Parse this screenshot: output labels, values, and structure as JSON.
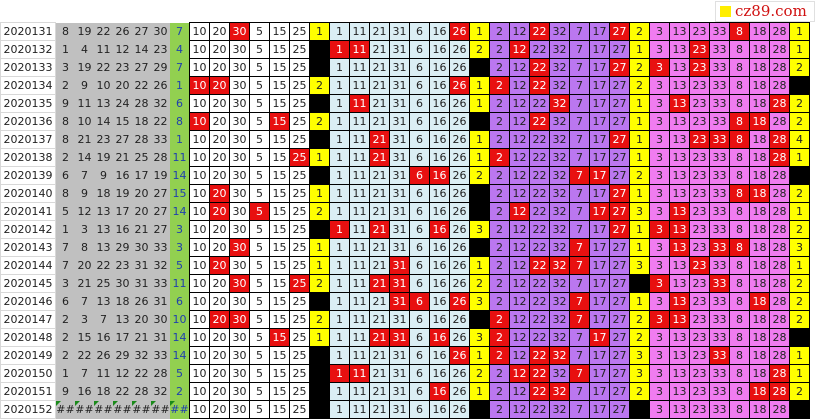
{
  "logo": {
    "text": "cz89.com",
    "color": "#d01010"
  },
  "colors": {
    "hit": "#e81010",
    "indicator": "#ffff00",
    "zero": "#000000",
    "blue_col": "#92d050",
    "draw_col": "#c0c0c0"
  },
  "groups": [
    {
      "numbers": [
        10,
        20,
        30,
        5,
        15,
        25
      ]
    },
    {
      "numbers": [
        1,
        11,
        21,
        31,
        6,
        16,
        26
      ]
    },
    {
      "numbers": [
        2,
        12,
        22,
        32,
        7,
        17,
        27
      ]
    },
    {
      "numbers": [
        3,
        13,
        23,
        33,
        8,
        18,
        28
      ]
    }
  ],
  "rows": [
    {
      "issue": "2020131",
      "reds": [
        8,
        19,
        22,
        26,
        27,
        30
      ],
      "blue": 7,
      "counts": [
        1,
        1,
        2,
        1
      ]
    },
    {
      "issue": "2020132",
      "reds": [
        1,
        4,
        11,
        12,
        14,
        23
      ],
      "blue": 4,
      "counts": [
        0,
        2,
        1,
        1
      ]
    },
    {
      "issue": "2020133",
      "reds": [
        3,
        19,
        22,
        23,
        27,
        29
      ],
      "blue": 7,
      "counts": [
        0,
        0,
        2,
        2
      ]
    },
    {
      "issue": "2020134",
      "reds": [
        2,
        9,
        10,
        20,
        22,
        26
      ],
      "blue": 1,
      "counts": [
        2,
        1,
        2,
        0
      ]
    },
    {
      "issue": "2020135",
      "reds": [
        9,
        11,
        13,
        24,
        28,
        32
      ],
      "blue": 6,
      "counts": [
        0,
        1,
        1,
        2
      ]
    },
    {
      "issue": "2020136",
      "reds": [
        8,
        10,
        14,
        15,
        18,
        22
      ],
      "blue": 8,
      "counts": [
        2,
        0,
        1,
        2
      ]
    },
    {
      "issue": "2020137",
      "reds": [
        8,
        21,
        23,
        27,
        28,
        33
      ],
      "blue": 1,
      "counts": [
        0,
        1,
        1,
        4
      ]
    },
    {
      "issue": "2020138",
      "reds": [
        2,
        14,
        19,
        21,
        25,
        28
      ],
      "blue": 11,
      "counts": [
        1,
        1,
        1,
        1
      ]
    },
    {
      "issue": "2020139",
      "reds": [
        6,
        7,
        9,
        16,
        17,
        19
      ],
      "blue": 14,
      "counts": [
        0,
        2,
        2,
        0
      ]
    },
    {
      "issue": "2020140",
      "reds": [
        8,
        9,
        18,
        19,
        20,
        27
      ],
      "blue": 15,
      "counts": [
        1,
        0,
        1,
        2
      ]
    },
    {
      "issue": "2020141",
      "reds": [
        5,
        12,
        13,
        17,
        20,
        27
      ],
      "blue": 14,
      "counts": [
        2,
        0,
        3,
        1
      ]
    },
    {
      "issue": "2020142",
      "reds": [
        1,
        3,
        13,
        16,
        21,
        27
      ],
      "blue": 3,
      "counts": [
        0,
        3,
        1,
        2
      ]
    },
    {
      "issue": "2020143",
      "reds": [
        7,
        8,
        13,
        29,
        30,
        33
      ],
      "blue": 3,
      "counts": [
        1,
        0,
        1,
        3
      ]
    },
    {
      "issue": "2020144",
      "reds": [
        7,
        20,
        22,
        23,
        31,
        32
      ],
      "blue": 5,
      "counts": [
        1,
        1,
        3,
        1
      ]
    },
    {
      "issue": "2020145",
      "reds": [
        3,
        21,
        25,
        30,
        31,
        33
      ],
      "blue": 11,
      "counts": [
        2,
        2,
        0,
        2
      ]
    },
    {
      "issue": "2020146",
      "reds": [
        6,
        7,
        13,
        18,
        26,
        31
      ],
      "blue": 6,
      "counts": [
        0,
        3,
        1,
        2
      ]
    },
    {
      "issue": "2020147",
      "reds": [
        2,
        3,
        7,
        13,
        20,
        30
      ],
      "blue": 10,
      "counts": [
        2,
        0,
        2,
        2
      ]
    },
    {
      "issue": "2020148",
      "reds": [
        2,
        15,
        16,
        17,
        21,
        31
      ],
      "blue": 14,
      "counts": [
        1,
        3,
        2,
        0
      ]
    },
    {
      "issue": "2020149",
      "reds": [
        2,
        22,
        26,
        29,
        32,
        33
      ],
      "blue": 14,
      "counts": [
        0,
        1,
        3,
        1
      ]
    },
    {
      "issue": "2020150",
      "reds": [
        1,
        7,
        11,
        12,
        22,
        28
      ],
      "blue": 5,
      "counts": [
        0,
        2,
        3,
        1
      ]
    },
    {
      "issue": "2020151",
      "reds": [
        9,
        16,
        18,
        22,
        28,
        32
      ],
      "blue": 2,
      "counts": [
        0,
        1,
        2,
        2
      ]
    },
    {
      "issue": "2020152",
      "reds": [
        "##",
        "##",
        "##",
        "##",
        "##",
        "##"
      ],
      "blue": "##",
      "counts": [
        0,
        0,
        0,
        0
      ],
      "pending": true
    }
  ]
}
